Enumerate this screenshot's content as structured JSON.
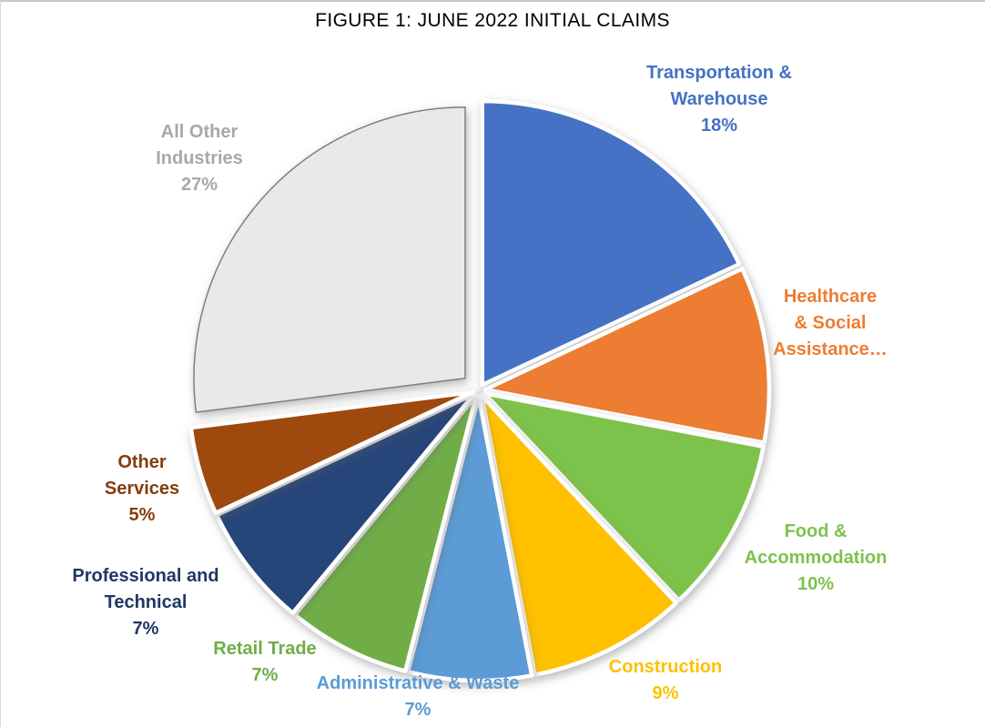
{
  "title": "FIGURE 1: JUNE 2022 INITIAL CLAIMS",
  "chart_data": {
    "type": "pie",
    "title": "FIGURE 1: JUNE 2022 INITIAL CLAIMS",
    "direction": "clockwise",
    "start_angle_deg": 0,
    "total": 100,
    "slices": [
      {
        "label": "Transportation & Warehouse",
        "value": 18,
        "color": "#4472C4",
        "label_color": "#4472C4",
        "label_lines": [
          "Transportation &",
          "Warehouse",
          "18%"
        ]
      },
      {
        "label": "Healthcare & Social Assistance",
        "value": 10,
        "color": "#ED7D31",
        "label_color": "#ED7D31",
        "label_lines": [
          "Healthcare",
          "& Social",
          "Assistance…"
        ]
      },
      {
        "label": "Food & Accommodation",
        "value": 10,
        "color": "#7DC24C",
        "label_color": "#7DC24C",
        "label_lines": [
          "Food &",
          "Accommodation",
          "10%"
        ]
      },
      {
        "label": "Construction",
        "value": 9,
        "color": "#FFC000",
        "label_color": "#FFC000",
        "label_lines": [
          "Construction",
          "9%"
        ]
      },
      {
        "label": "Administrative & Waste",
        "value": 7,
        "color": "#5B9BD5",
        "label_color": "#5B9BD5",
        "label_lines": [
          "Administrative & Waste",
          "7%"
        ]
      },
      {
        "label": "Retail Trade",
        "value": 7,
        "color": "#70AD47",
        "label_color": "#70AD47",
        "label_lines": [
          "Retail Trade",
          "7%"
        ]
      },
      {
        "label": "Professional and Technical",
        "value": 7,
        "color": "#264478",
        "label_color": "#1F3864",
        "label_lines": [
          "Professional and",
          "Technical",
          "7%"
        ]
      },
      {
        "label": "Other Services",
        "value": 5,
        "color": "#9E480E",
        "label_color": "#843C0C",
        "label_lines": [
          "Other",
          "Services",
          "5%"
        ]
      },
      {
        "label": "All Other Industries",
        "value": 27,
        "color": "#E9E9E9",
        "border_color": "#7F7F7F",
        "label_color": "#A8A8A8",
        "label_lines": [
          "All Other",
          "Industries",
          "27%"
        ],
        "exploded": true
      }
    ]
  }
}
